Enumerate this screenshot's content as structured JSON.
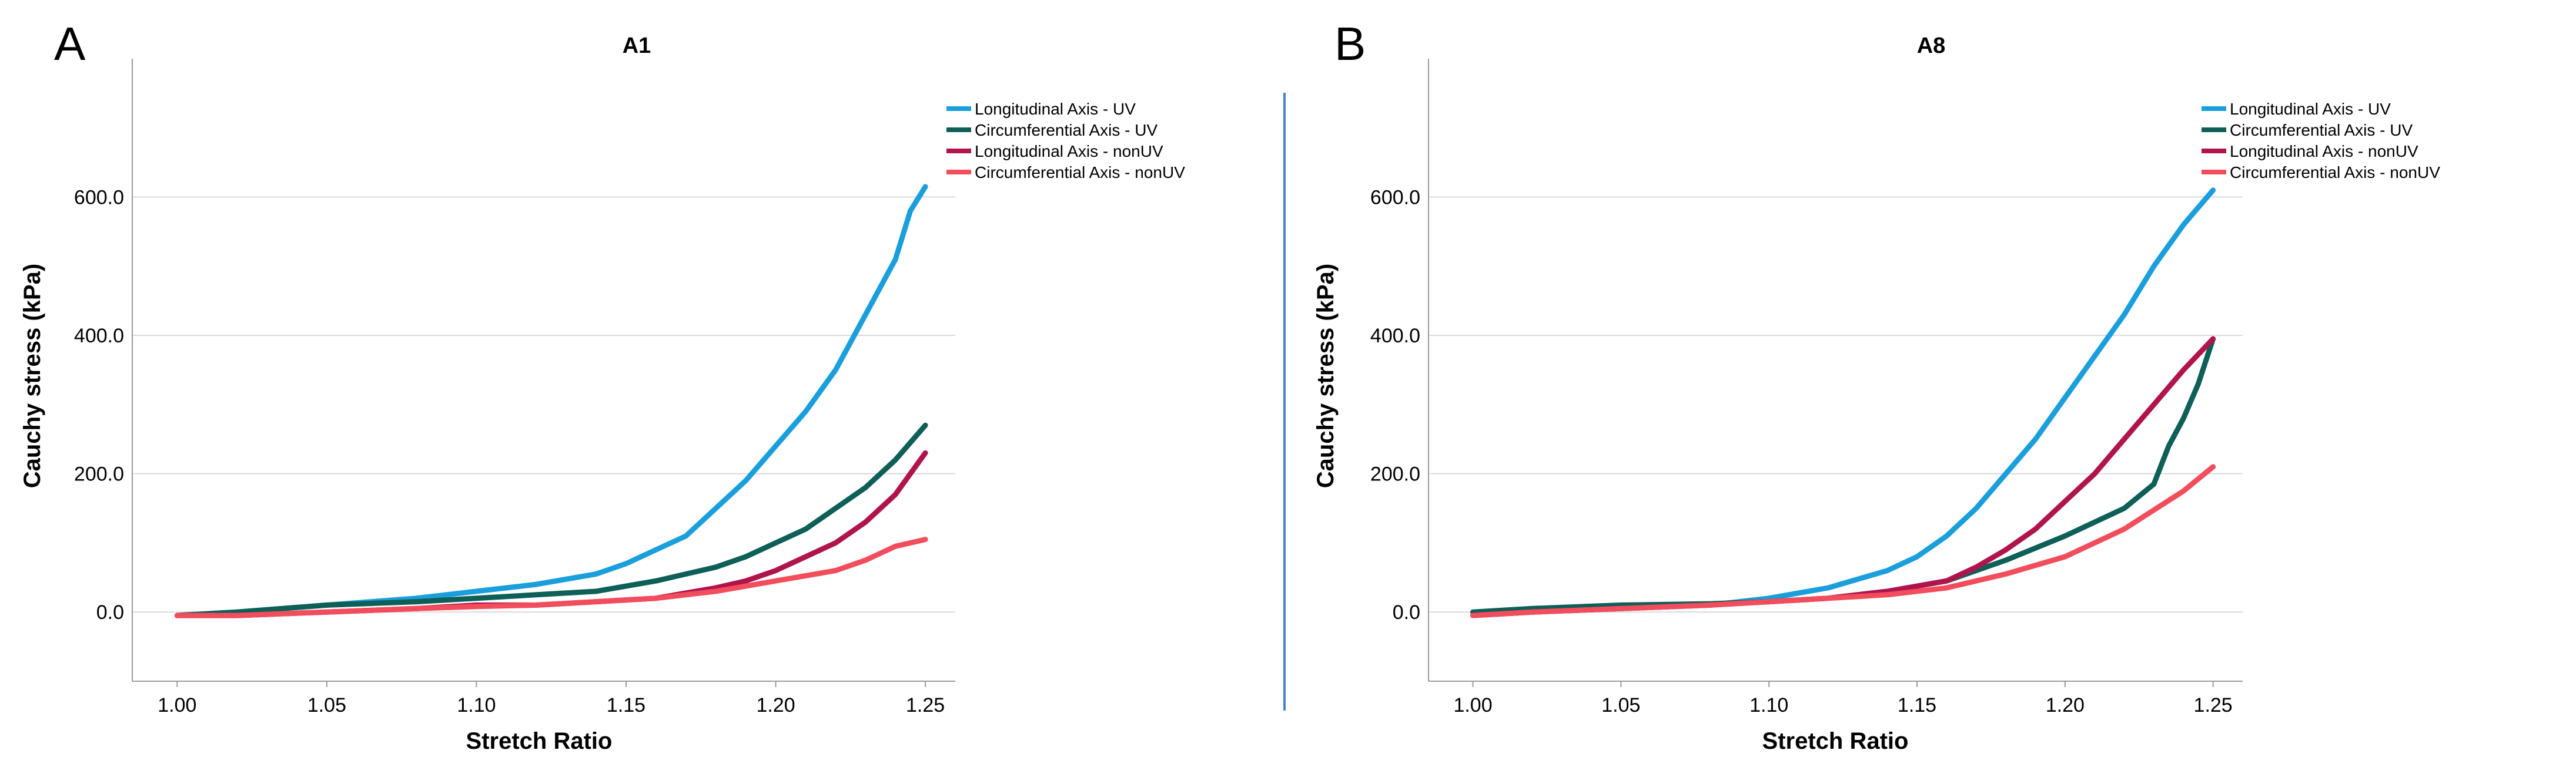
{
  "colors": {
    "long_uv": "#1a9fdc",
    "circ_uv": "#0d5f57",
    "long_nonuv": "#b0144d",
    "circ_nonuv": "#f24d5c",
    "divider": "#4a7fcf"
  },
  "chart_data": [
    {
      "panel": "A",
      "type": "line",
      "title": "A1",
      "xlabel": "Stretch Ratio",
      "ylabel": "Cauchy stress (kPa)",
      "xlim": [
        0.985,
        1.26
      ],
      "ylim": [
        -100,
        800
      ],
      "xticks": [
        1.0,
        1.05,
        1.1,
        1.15,
        1.2,
        1.25
      ],
      "xtick_labels": [
        "1.00",
        "1.05",
        "1.10",
        "1.15",
        "1.20",
        "1.25"
      ],
      "yticks": [
        0,
        200,
        400,
        600
      ],
      "ytick_labels": [
        "0.0",
        "200.0",
        "400.0",
        "600.0"
      ],
      "grid": "horizontal",
      "legend": "top-right",
      "series": [
        {
          "name": "Longitudinal Axis - UV",
          "color_key": "long_uv",
          "x": [
            1.0,
            1.02,
            1.05,
            1.08,
            1.1,
            1.12,
            1.14,
            1.15,
            1.16,
            1.17,
            1.18,
            1.19,
            1.2,
            1.21,
            1.22,
            1.23,
            1.24,
            1.245,
            1.25
          ],
          "y": [
            -5,
            0,
            10,
            20,
            30,
            40,
            55,
            70,
            90,
            110,
            150,
            190,
            240,
            290,
            350,
            430,
            510,
            580,
            615
          ]
        },
        {
          "name": "Circumferential Axis - UV",
          "color_key": "circ_uv",
          "x": [
            1.0,
            1.02,
            1.05,
            1.08,
            1.1,
            1.12,
            1.14,
            1.16,
            1.18,
            1.19,
            1.2,
            1.21,
            1.22,
            1.23,
            1.24,
            1.25
          ],
          "y": [
            -5,
            0,
            10,
            15,
            20,
            25,
            30,
            45,
            65,
            80,
            100,
            120,
            150,
            180,
            220,
            270
          ]
        },
        {
          "name": "Longitudinal Axis - nonUV",
          "color_key": "long_nonuv",
          "x": [
            1.0,
            1.02,
            1.05,
            1.08,
            1.1,
            1.12,
            1.14,
            1.16,
            1.18,
            1.19,
            1.2,
            1.21,
            1.22,
            1.23,
            1.24,
            1.25
          ],
          "y": [
            -5,
            -5,
            0,
            5,
            10,
            10,
            15,
            20,
            35,
            45,
            60,
            80,
            100,
            130,
            170,
            230
          ]
        },
        {
          "name": "Circumferential Axis - nonUV",
          "color_key": "circ_nonuv",
          "x": [
            1.0,
            1.02,
            1.05,
            1.08,
            1.1,
            1.12,
            1.14,
            1.16,
            1.18,
            1.2,
            1.22,
            1.23,
            1.24,
            1.25
          ],
          "y": [
            -5,
            -5,
            0,
            5,
            8,
            10,
            15,
            20,
            30,
            45,
            60,
            75,
            95,
            105
          ]
        }
      ]
    },
    {
      "panel": "B",
      "type": "line",
      "title": "A8",
      "xlabel": "Stretch Ratio",
      "ylabel": "Cauchy stress (kPa)",
      "xlim": [
        0.985,
        1.26
      ],
      "ylim": [
        -100,
        800
      ],
      "xticks": [
        1.0,
        1.05,
        1.1,
        1.15,
        1.2,
        1.25
      ],
      "xtick_labels": [
        "1.00",
        "1.05",
        "1.10",
        "1.15",
        "1.20",
        "1.25"
      ],
      "yticks": [
        0,
        200,
        400,
        600
      ],
      "ytick_labels": [
        "0.0",
        "200.0",
        "400.0",
        "600.0"
      ],
      "grid": "horizontal",
      "legend": "top-right",
      "series": [
        {
          "name": "Longitudinal Axis - UV",
          "color_key": "long_uv",
          "x": [
            1.0,
            1.02,
            1.05,
            1.08,
            1.1,
            1.12,
            1.14,
            1.15,
            1.16,
            1.17,
            1.18,
            1.19,
            1.2,
            1.21,
            1.22,
            1.23,
            1.24,
            1.25
          ],
          "y": [
            -5,
            0,
            5,
            10,
            20,
            35,
            60,
            80,
            110,
            150,
            200,
            250,
            310,
            370,
            430,
            500,
            560,
            610
          ]
        },
        {
          "name": "Circumferential Axis - UV",
          "color_key": "circ_uv",
          "x": [
            1.0,
            1.02,
            1.05,
            1.08,
            1.1,
            1.12,
            1.14,
            1.16,
            1.18,
            1.2,
            1.21,
            1.22,
            1.23,
            1.235,
            1.24,
            1.245,
            1.25
          ],
          "y": [
            0,
            5,
            10,
            12,
            15,
            20,
            30,
            45,
            75,
            110,
            130,
            150,
            185,
            240,
            280,
            330,
            395
          ]
        },
        {
          "name": "Longitudinal Axis - nonUV",
          "color_key": "long_nonuv",
          "x": [
            1.0,
            1.02,
            1.05,
            1.08,
            1.1,
            1.12,
            1.14,
            1.16,
            1.17,
            1.18,
            1.19,
            1.2,
            1.21,
            1.22,
            1.23,
            1.24,
            1.25
          ],
          "y": [
            -5,
            0,
            5,
            10,
            15,
            20,
            30,
            45,
            65,
            90,
            120,
            160,
            200,
            250,
            300,
            350,
            395
          ]
        },
        {
          "name": "Circumferential Axis - nonUV",
          "color_key": "circ_nonuv",
          "x": [
            1.0,
            1.02,
            1.05,
            1.08,
            1.1,
            1.12,
            1.14,
            1.16,
            1.18,
            1.2,
            1.22,
            1.24,
            1.25
          ],
          "y": [
            -5,
            0,
            5,
            10,
            15,
            20,
            25,
            35,
            55,
            80,
            120,
            175,
            210
          ]
        }
      ]
    }
  ]
}
